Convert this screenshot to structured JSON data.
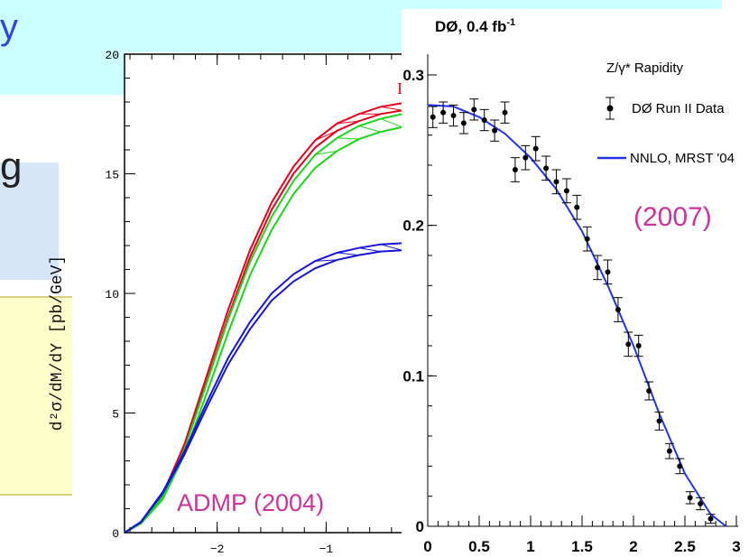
{
  "slide": {
    "fragment_top": "y",
    "fragment_mid": "g"
  },
  "left_plot": {
    "ylabel": "d²σ/dM/dY [pb/GeV]",
    "annotation": "ADMP (2004)",
    "corner_mark": "I",
    "colors": {
      "red": "#e8001c",
      "green": "#19d619",
      "blue": "#1515d8",
      "annotation": "#cc3399"
    }
  },
  "right_plot": {
    "title": "DØ, 0.4 fb",
    "title_sup": "-1",
    "legend_title": "Z/γ* Rapidity",
    "legend_data": "DØ Run II Data",
    "legend_theory": "NNLO, MRST '04",
    "year": "(2007)",
    "colors": {
      "theory": "#2233ee",
      "year": "#cc3399"
    }
  },
  "chart_data": [
    {
      "type": "line",
      "title": "",
      "xlabel": "",
      "ylabel": "d²σ/dM/dY [pb/GeV]",
      "xlim": [
        -2.85,
        -0.2
      ],
      "ylim": [
        0,
        20
      ],
      "x_ticks": [
        -2,
        -1
      ],
      "y_ticks": [
        0,
        5,
        10,
        15,
        20
      ],
      "series": [
        {
          "color": "#e8001c",
          "x": [
            -2.85,
            -2.7,
            -2.5,
            -2.3,
            -2.1,
            -1.9,
            -1.7,
            -1.5,
            -1.3,
            -1.1,
            -0.9,
            -0.7,
            -0.5,
            -0.3,
            -0.2
          ],
          "y": [
            0.0,
            0.4,
            1.6,
            3.7,
            6.5,
            9.3,
            11.8,
            13.8,
            15.3,
            16.4,
            17.1,
            17.5,
            17.8,
            17.95,
            18.0
          ]
        },
        {
          "color": "#19d619",
          "x": [
            -2.85,
            -2.7,
            -2.5,
            -2.3,
            -2.1,
            -1.9,
            -1.7,
            -1.5,
            -1.3,
            -1.1,
            -0.9,
            -0.7,
            -0.5,
            -0.3,
            -0.2
          ],
          "y": [
            0.0,
            0.4,
            1.5,
            3.5,
            6.2,
            8.9,
            11.3,
            13.2,
            14.7,
            15.8,
            16.5,
            17.0,
            17.3,
            17.5,
            17.5
          ]
        },
        {
          "color": "#1515d8",
          "x": [
            -2.85,
            -2.7,
            -2.5,
            -2.3,
            -2.1,
            -1.9,
            -1.7,
            -1.5,
            -1.3,
            -1.1,
            -0.9,
            -0.7,
            -0.5,
            -0.3,
            -0.2
          ],
          "y": [
            0.0,
            0.45,
            1.7,
            3.4,
            5.4,
            7.3,
            8.8,
            10.0,
            10.8,
            11.35,
            11.7,
            11.9,
            12.05,
            12.1,
            12.15
          ]
        }
      ],
      "annotations": [
        "ADMP (2004)"
      ]
    },
    {
      "type": "scatter",
      "title": "DØ, 0.4 fb-1",
      "xlabel": "",
      "ylabel": "",
      "xlim": [
        0,
        3
      ],
      "ylim": [
        0,
        0.3
      ],
      "x_ticks": [
        "0",
        "0.5",
        "1",
        "1.5",
        "2",
        "2.5",
        "3"
      ],
      "y_ticks": [
        "0",
        "0.1",
        "0.2",
        "0.3"
      ],
      "legend": "top-right",
      "series": [
        {
          "name": "DØ Run II Data",
          "x": [
            0.05,
            0.15,
            0.25,
            0.35,
            0.45,
            0.55,
            0.65,
            0.75,
            0.85,
            0.95,
            1.05,
            1.15,
            1.25,
            1.35,
            1.45,
            1.55,
            1.65,
            1.75,
            1.85,
            1.95,
            2.05,
            2.15,
            2.25,
            2.35,
            2.45,
            2.55,
            2.65,
            2.75
          ],
          "y": [
            0.272,
            0.275,
            0.273,
            0.268,
            0.277,
            0.27,
            0.263,
            0.275,
            0.237,
            0.245,
            0.251,
            0.238,
            0.229,
            0.223,
            0.212,
            0.191,
            0.172,
            0.169,
            0.144,
            0.121,
            0.12,
            0.09,
            0.07,
            0.05,
            0.04,
            0.019,
            0.015,
            0.005
          ],
          "err": [
            0.007,
            0.007,
            0.007,
            0.007,
            0.007,
            0.007,
            0.007,
            0.007,
            0.008,
            0.008,
            0.008,
            0.008,
            0.008,
            0.008,
            0.008,
            0.008,
            0.008,
            0.008,
            0.008,
            0.008,
            0.007,
            0.006,
            0.006,
            0.005,
            0.005,
            0.004,
            0.004,
            0.003
          ]
        },
        {
          "name": "NNLO, MRST '04",
          "x": [
            0,
            0.25,
            0.5,
            0.75,
            1.0,
            1.25,
            1.5,
            1.75,
            2.0,
            2.25,
            2.5,
            2.75,
            2.9
          ],
          "y": [
            0.28,
            0.279,
            0.272,
            0.261,
            0.245,
            0.224,
            0.196,
            0.16,
            0.12,
            0.075,
            0.035,
            0.008,
            0.0
          ]
        }
      ],
      "annotations": [
        "(2007)"
      ]
    }
  ]
}
